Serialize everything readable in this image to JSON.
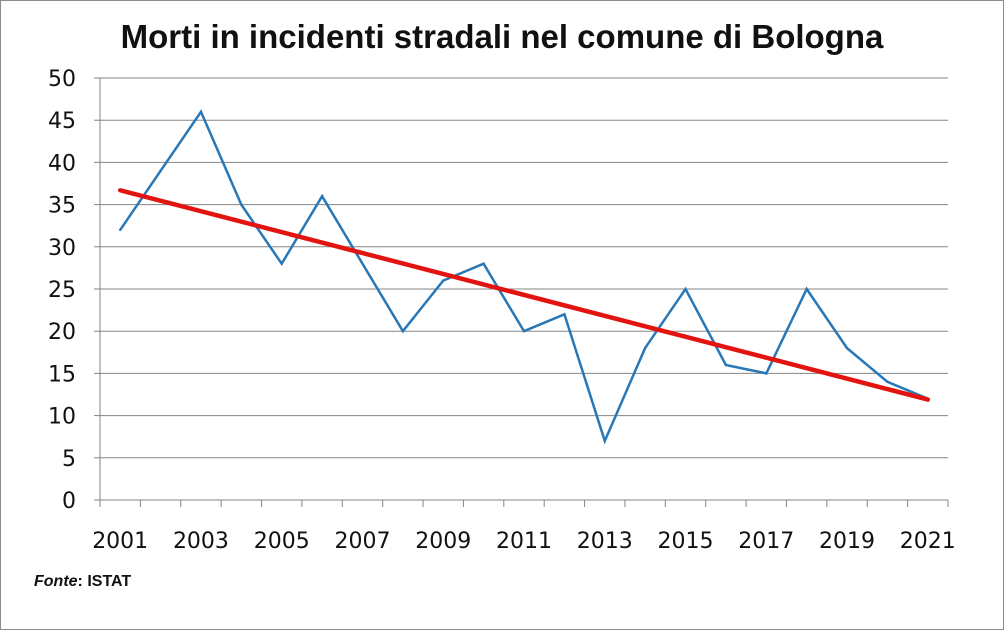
{
  "chart_data": {
    "type": "line",
    "title": "Morti in incidenti stradali nel comune di Bologna",
    "x": [
      2001,
      2002,
      2003,
      2004,
      2005,
      2006,
      2007,
      2008,
      2009,
      2010,
      2011,
      2012,
      2013,
      2014,
      2015,
      2016,
      2017,
      2018,
      2019,
      2020,
      2021
    ],
    "x_tick_labels": [
      "2001",
      "2003",
      "2005",
      "2007",
      "2009",
      "2011",
      "2013",
      "2015",
      "2017",
      "2019",
      "2021"
    ],
    "y_tick_labels": [
      "0",
      "5",
      "10",
      "15",
      "20",
      "25",
      "30",
      "35",
      "40",
      "45",
      "50"
    ],
    "ylim": [
      0,
      50
    ],
    "grid": true,
    "series": [
      {
        "values": [
          32,
          39,
          46,
          35,
          28,
          36,
          28,
          20,
          26,
          28,
          20,
          22,
          7,
          18,
          25,
          16,
          15,
          25,
          18,
          14,
          12
        ],
        "color": "#2878b8"
      },
      {
        "type": "trendline",
        "values_start_end": [
          36.7,
          11.9
        ],
        "color": "#e3130f"
      }
    ]
  },
  "source": {
    "label": "Fonte",
    "value": ": ISTAT"
  }
}
